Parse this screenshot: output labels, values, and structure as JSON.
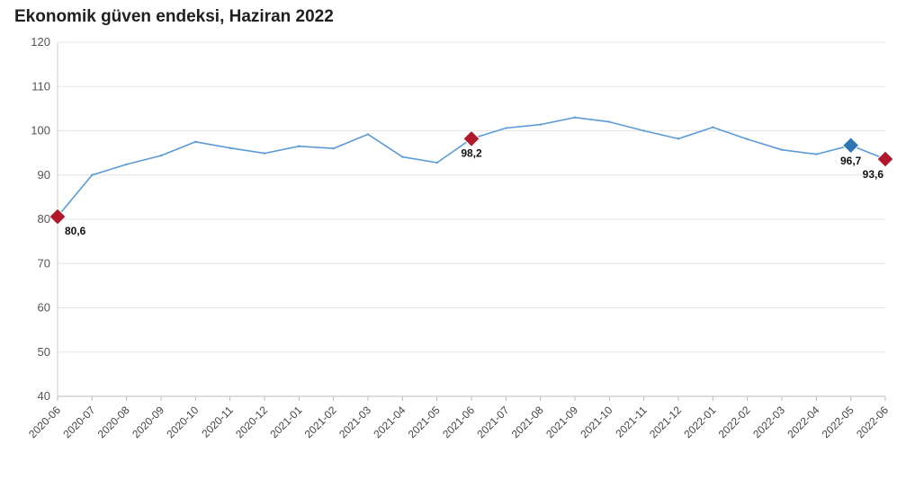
{
  "chart_data": {
    "type": "line",
    "title": "Ekonomik güven endeksi, Haziran 2022",
    "xlabel": "",
    "ylabel": "",
    "ylim": [
      40,
      120
    ],
    "yticks": [
      40,
      50,
      60,
      70,
      80,
      90,
      100,
      110,
      120
    ],
    "grid": true,
    "legend": "none",
    "categories": [
      "2020-06",
      "2020-07",
      "2020-08",
      "2020-09",
      "2020-10",
      "2020-11",
      "2020-12",
      "2021-01",
      "2021-02",
      "2021-03",
      "2021-04",
      "2021-05",
      "2021-06",
      "2021-07",
      "2021-08",
      "2021-09",
      "2021-10",
      "2021-11",
      "2021-12",
      "2022-01",
      "2022-02",
      "2022-03",
      "2022-04",
      "2022-05",
      "2022-06"
    ],
    "series": [
      {
        "values": [
          80.6,
          90.0,
          92.4,
          94.4,
          97.5,
          96.1,
          94.9,
          96.5,
          96.0,
          99.2,
          94.1,
          92.8,
          98.2,
          100.6,
          101.4,
          103.0,
          102.0,
          100.0,
          98.2,
          100.8,
          98.1,
          95.7,
          94.7,
          96.7,
          93.6
        ],
        "color": "#5b9bd5"
      }
    ],
    "markers": [
      {
        "category": "2020-06",
        "value": 80.6,
        "label": "80,6",
        "color": "#b2182b"
      },
      {
        "category": "2021-06",
        "value": 98.2,
        "label": "98,2",
        "color": "#b2182b"
      },
      {
        "category": "2022-05",
        "value": 96.7,
        "label": "96,7",
        "color": "#2e75b6"
      },
      {
        "category": "2022-06",
        "value": 93.6,
        "label": "93,6",
        "color": "#b2182b"
      }
    ]
  }
}
